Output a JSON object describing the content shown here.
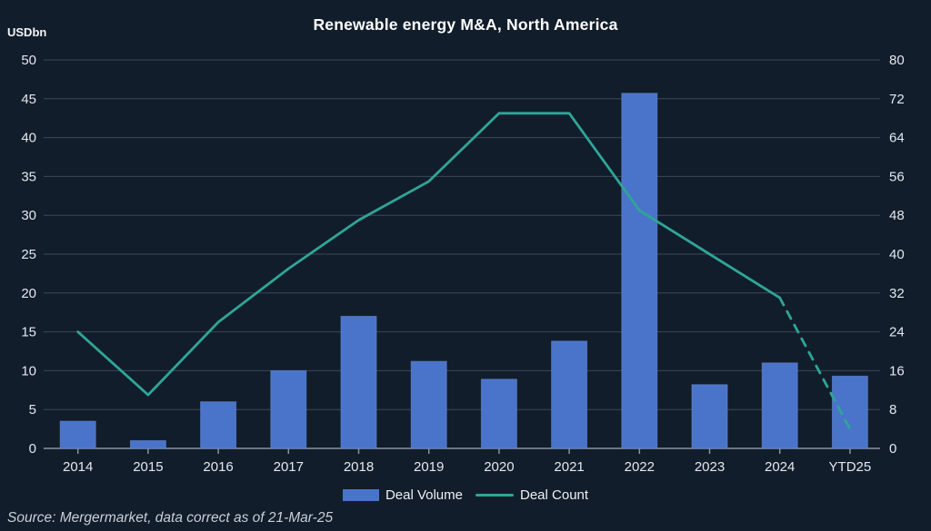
{
  "title": "Renewable energy M&A, North America",
  "source_note": "Source: Mergermarket, data correct as of 21-Mar-25",
  "colors": {
    "background": "#121d2b",
    "bar": "#4a74c9",
    "bar_edge": "#6488d4",
    "line": "#2fa597",
    "grid": "#3c4856",
    "baseline": "#8a93a0",
    "axis_text": "#e3e8ee",
    "title_text": "#fcfdfe"
  },
  "chart_data": {
    "type": "bar",
    "title": "Renewable energy M&A, North America",
    "categories": [
      "2014",
      "2015",
      "2016",
      "2017",
      "2018",
      "2019",
      "2020",
      "2021",
      "2022",
      "2023",
      "2024",
      "YTD25"
    ],
    "series": [
      {
        "name": "Deal Volume",
        "type": "bar",
        "axis": "left",
        "color": "#4a74c9",
        "values": [
          3.5,
          1.0,
          6.0,
          10.0,
          17.0,
          11.2,
          8.9,
          13.8,
          45.7,
          8.2,
          11.0,
          9.3
        ]
      },
      {
        "name": "Deal Count",
        "type": "line",
        "axis": "right",
        "color": "#2fa597",
        "values": [
          24,
          11,
          26,
          37,
          47,
          55,
          69,
          69,
          49,
          40,
          31,
          4
        ],
        "dash_from_index": 10
      }
    ],
    "left_axis": {
      "label": "USDbn",
      "min": 0,
      "max": 50,
      "ticks": [
        0,
        5,
        10,
        15,
        20,
        25,
        30,
        35,
        40,
        45,
        50
      ]
    },
    "right_axis": {
      "label": "",
      "min": 0,
      "max": 80,
      "ticks": [
        0,
        8,
        16,
        24,
        32,
        40,
        48,
        56,
        64,
        72,
        80
      ]
    },
    "grid": true,
    "legend_position": "bottom"
  },
  "legend": {
    "bar_label": "Deal Volume",
    "line_label": "Deal Count"
  }
}
